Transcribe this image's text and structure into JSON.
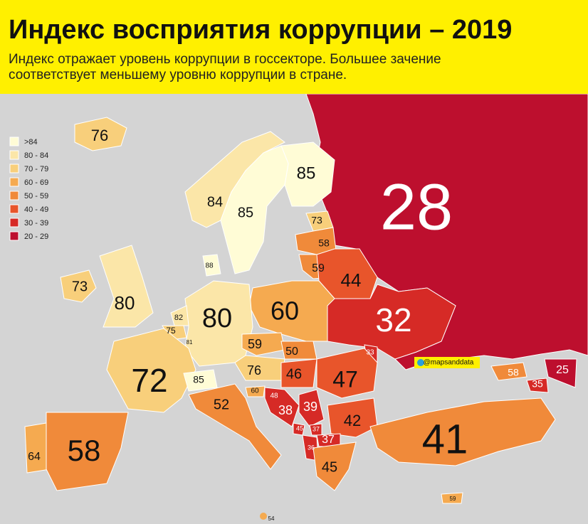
{
  "header": {
    "title": "Индекс восприятия коррупции – 2019",
    "subtitle_lines": [
      "Индекс отражает уровень коррупции в госсекторе. Большее зачение",
      "соответствует меньшему уровню коррупции в стране."
    ]
  },
  "legend": {
    "items": [
      {
        "label": ">84",
        "color": "#fffcd6"
      },
      {
        "label": "80 - 84",
        "color": "#fbe6a8"
      },
      {
        "label": "70 - 79",
        "color": "#f8cf7b"
      },
      {
        "label": "60 - 69",
        "color": "#f5aa50"
      },
      {
        "label": "50 - 59",
        "color": "#f08a3a"
      },
      {
        "label": "40 - 49",
        "color": "#e8552b"
      },
      {
        "label": "30 - 39",
        "color": "#d62a26"
      },
      {
        "label": "20 - 29",
        "color": "#bd0f2e"
      }
    ]
  },
  "labels": [
    76,
    85,
    28,
    84,
    85,
    73,
    58,
    59,
    88,
    73,
    80,
    44,
    60,
    80,
    32,
    82,
    75,
    81,
    59,
    50,
    33,
    72,
    76,
    46,
    47,
    85,
    58,
    25,
    35,
    60,
    48,
    52,
    38,
    39,
    42,
    45,
    37,
    37,
    36,
    41,
    64,
    58,
    45,
    59,
    54
  ],
  "watermark": "@mapsanddata"
}
